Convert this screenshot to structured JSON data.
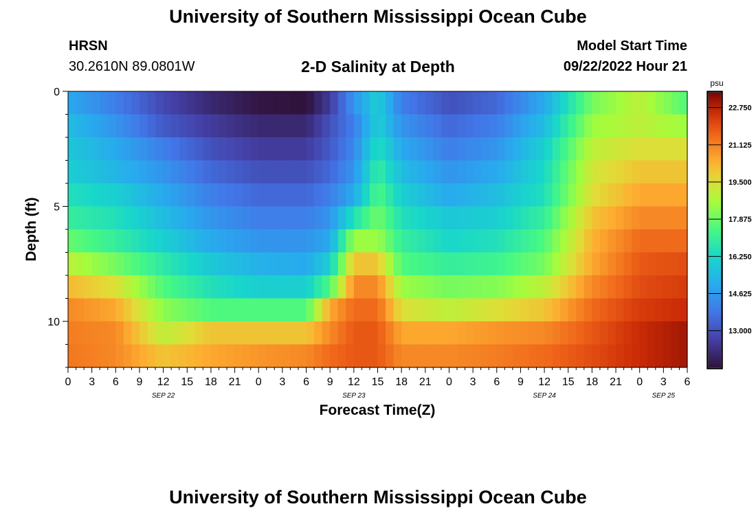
{
  "header": {
    "title": "University of Southern Mississippi Ocean Cube",
    "station": "HRSN",
    "coords": "30.2610N  89.0801W",
    "subtitle": "2-D Salinity at Depth",
    "start_label": "Model Start Time",
    "start_value": "09/22/2022 Hour 21"
  },
  "footer": {
    "title": "University of Southern Mississippi Ocean Cube"
  },
  "chart_data": {
    "type": "heatmap",
    "title": "2-D Salinity at Depth",
    "xlabel": "Forecast Time(Z)",
    "ylabel": "Depth (ft)",
    "x_tick_labels": [
      "0",
      "3",
      "6",
      "9",
      "12",
      "15",
      "18",
      "21",
      "0",
      "3",
      "6",
      "9",
      "12",
      "15",
      "18",
      "21",
      "0",
      "3",
      "6",
      "9",
      "12",
      "15",
      "18",
      "21",
      "0",
      "3",
      "6"
    ],
    "x_range_hours": [
      0,
      78
    ],
    "date_labels": [
      {
        "label": "SEP 22",
        "hour": 12
      },
      {
        "label": "SEP 23",
        "hour": 36
      },
      {
        "label": "SEP 24",
        "hour": 60
      },
      {
        "label": "SEP 25",
        "hour": 75
      }
    ],
    "y_ticks": [
      "0",
      "5",
      "10"
    ],
    "y_range_ft": [
      0,
      12
    ],
    "depth_levels_ft": [
      0.5,
      1.5,
      2.5,
      3.5,
      4.5,
      5.5,
      6.5,
      7.5,
      8.5,
      9.5,
      10.5,
      11.5
    ],
    "time_knots_hours": [
      0,
      6,
      12,
      18,
      24,
      30,
      33,
      36,
      39,
      42,
      48,
      54,
      60,
      66,
      72,
      78
    ],
    "salinity_psu": [
      [
        15.0,
        14.0,
        12.8,
        12.0,
        11.5,
        11.4,
        12.5,
        14.5,
        16.0,
        14.0,
        13.0,
        13.5,
        15.0,
        18.0,
        19.0,
        17.5
      ],
      [
        15.5,
        14.5,
        13.2,
        12.5,
        12.0,
        12.0,
        13.0,
        14.0,
        16.0,
        14.5,
        13.5,
        14.0,
        15.5,
        18.5,
        19.0,
        18.5
      ],
      [
        15.8,
        15.0,
        14.0,
        13.0,
        12.5,
        12.5,
        13.2,
        14.2,
        16.5,
        15.0,
        14.0,
        14.5,
        16.0,
        19.0,
        19.5,
        19.5
      ],
      [
        16.0,
        15.3,
        14.5,
        13.5,
        13.0,
        13.0,
        13.5,
        14.5,
        17.0,
        15.5,
        14.5,
        15.0,
        16.3,
        19.3,
        20.0,
        20.0
      ],
      [
        16.5,
        16.0,
        15.0,
        14.0,
        13.5,
        13.5,
        14.0,
        15.0,
        17.5,
        16.0,
        15.0,
        15.5,
        16.5,
        19.5,
        20.5,
        20.5
      ],
      [
        17.0,
        16.5,
        15.5,
        14.5,
        14.0,
        14.0,
        14.5,
        16.5,
        18.0,
        16.5,
        15.8,
        16.0,
        17.0,
        20.0,
        21.0,
        21.0
      ],
      [
        17.8,
        17.0,
        16.0,
        15.0,
        14.5,
        14.5,
        15.0,
        18.5,
        18.5,
        17.0,
        16.2,
        16.5,
        17.5,
        20.3,
        21.5,
        21.5
      ],
      [
        19.0,
        18.0,
        16.8,
        15.8,
        15.2,
        15.0,
        16.0,
        20.0,
        20.0,
        17.5,
        17.0,
        17.2,
        18.0,
        20.5,
        21.8,
        22.0
      ],
      [
        20.2,
        19.5,
        17.5,
        16.5,
        16.0,
        16.0,
        17.5,
        21.0,
        21.0,
        18.5,
        18.0,
        18.2,
        19.0,
        21.0,
        22.0,
        22.3
      ],
      [
        21.0,
        20.5,
        18.3,
        17.5,
        17.5,
        17.5,
        20.5,
        21.5,
        21.5,
        19.5,
        19.0,
        19.5,
        20.0,
        21.5,
        22.3,
        22.6
      ],
      [
        21.2,
        21.0,
        19.0,
        20.0,
        20.0,
        20.0,
        21.0,
        21.8,
        21.8,
        20.5,
        20.5,
        20.8,
        21.0,
        21.8,
        22.6,
        23.0
      ],
      [
        21.3,
        21.0,
        20.0,
        20.5,
        20.8,
        21.0,
        21.5,
        21.8,
        21.8,
        21.0,
        21.0,
        21.2,
        21.5,
        22.0,
        22.6,
        23.0
      ]
    ],
    "colorbar": {
      "unit": "psu",
      "range": [
        11.4,
        23.4
      ],
      "tick_labels": [
        "22.750",
        "21.125",
        "19.500",
        "17.875",
        "16.250",
        "14.625",
        "13.000"
      ],
      "tick_values": [
        22.75,
        21.125,
        19.5,
        17.875,
        16.25,
        14.625,
        13.0
      ]
    }
  }
}
